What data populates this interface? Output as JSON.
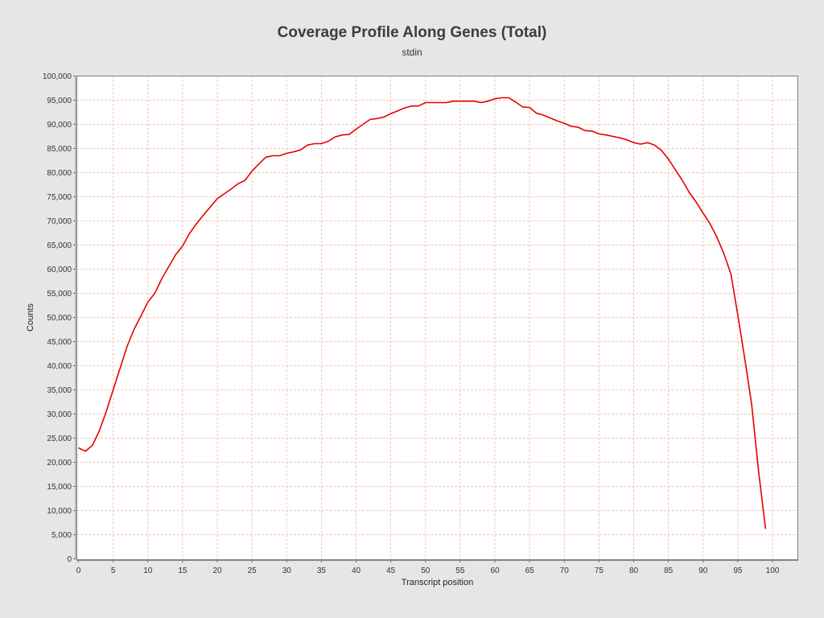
{
  "chart_data": {
    "type": "line",
    "title": "Coverage Profile Along Genes (Total)",
    "subtitle": "stdin",
    "xlabel": "Transcript position",
    "ylabel": "Counts",
    "xlim": [
      0,
      104
    ],
    "ylim": [
      0,
      100000
    ],
    "x_ticks": [
      0,
      5,
      10,
      15,
      20,
      25,
      30,
      35,
      40,
      45,
      50,
      55,
      60,
      65,
      70,
      75,
      80,
      85,
      90,
      95,
      100
    ],
    "y_ticks": [
      0,
      5000,
      10000,
      15000,
      20000,
      25000,
      30000,
      35000,
      40000,
      45000,
      50000,
      55000,
      60000,
      65000,
      70000,
      75000,
      80000,
      85000,
      90000,
      95000,
      100000
    ],
    "y_tick_labels": [
      "0",
      "5,000",
      "10,000",
      "15,000",
      "20,000",
      "25,000",
      "30,000",
      "35,000",
      "40,000",
      "45,000",
      "50,000",
      "55,000",
      "60,000",
      "65,000",
      "70,000",
      "75,000",
      "80,000",
      "85,000",
      "90,000",
      "95,000",
      "100,000"
    ],
    "grid": true,
    "colors": {
      "line": "#e60000",
      "grid": "#f0b8a0",
      "plot_bg": "#ffffff",
      "page_bg": "#e6e6e6"
    },
    "series": [
      {
        "x": [
          0,
          1,
          2,
          3,
          4,
          5,
          6,
          7,
          8,
          9,
          10,
          11,
          12,
          13,
          14,
          15,
          16,
          17,
          18,
          19,
          20,
          21,
          22,
          23,
          24,
          25,
          26,
          27,
          28,
          29,
          30,
          31,
          32,
          33,
          34,
          35,
          36,
          37,
          38,
          39,
          40,
          41,
          42,
          43,
          44,
          45,
          46,
          47,
          48,
          49,
          50,
          51,
          52,
          53,
          54,
          55,
          56,
          57,
          58,
          59,
          60,
          61,
          62,
          63,
          64,
          65,
          66,
          67,
          68,
          69,
          70,
          71,
          72,
          73,
          74,
          75,
          76,
          77,
          78,
          79,
          80,
          81,
          82,
          83,
          84,
          85,
          86,
          87,
          88,
          89,
          90,
          91,
          92,
          93,
          94,
          95,
          96,
          97,
          98,
          99
        ],
        "values": [
          23000,
          22300,
          23500,
          26500,
          30500,
          35000,
          39500,
          44000,
          47500,
          50300,
          53200,
          55000,
          58000,
          60500,
          63000,
          64800,
          67400,
          69400,
          71200,
          72900,
          74600,
          75600,
          76600,
          77700,
          78400,
          80300,
          81800,
          83200,
          83500,
          83500,
          84000,
          84300,
          84700,
          85700,
          86000,
          86000,
          86500,
          87400,
          87800,
          87900,
          89000,
          90000,
          91000,
          91200,
          91500,
          92200,
          92800,
          93400,
          93800,
          93800,
          94500,
          94500,
          94500,
          94500,
          94800,
          94800,
          94800,
          94800,
          94500,
          94800,
          95300,
          95500,
          95500,
          94600,
          93600,
          93500,
          92300,
          91900,
          91300,
          90700,
          90200,
          89600,
          89400,
          88700,
          88600,
          88000,
          87800,
          87500,
          87200,
          86800,
          86200,
          85900,
          86200,
          85700,
          84600,
          82800,
          80600,
          78400,
          75900,
          73900,
          71600,
          69400,
          66600,
          63200,
          59000,
          50500,
          41500,
          32000,
          18000,
          6200
        ]
      }
    ]
  }
}
